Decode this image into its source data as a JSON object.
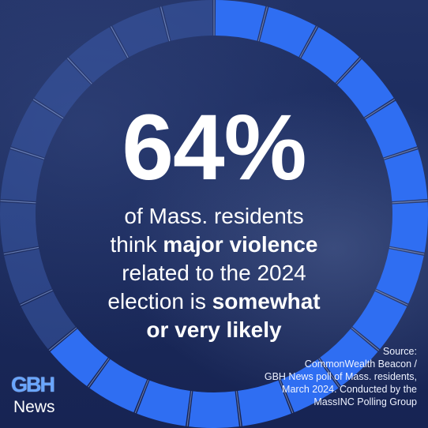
{
  "headline": {
    "percent": "64%",
    "line1": "of Mass. residents",
    "line2_pre": "think ",
    "line2_bold": "major violence",
    "line3": "related to the 2024",
    "line4_pre": "election is ",
    "line4_bold": "somewhat",
    "line5_bold": "or very likely"
  },
  "progress": {
    "value": 0.64,
    "segments": 25
  },
  "source": {
    "line1": "Source:",
    "line2": "CommonWealth Beacon /",
    "line3": "GBH News poll of Mass. residents,",
    "line4": "March 2024. Conducted by the",
    "line5": "MassINC Polling Group"
  },
  "logo": {
    "mark": "GBH",
    "name": "News"
  },
  "colors": {
    "ring_filled": "#2f6ef2",
    "ring_empty": "#3a5aa8",
    "background": "#1c2b5e"
  }
}
